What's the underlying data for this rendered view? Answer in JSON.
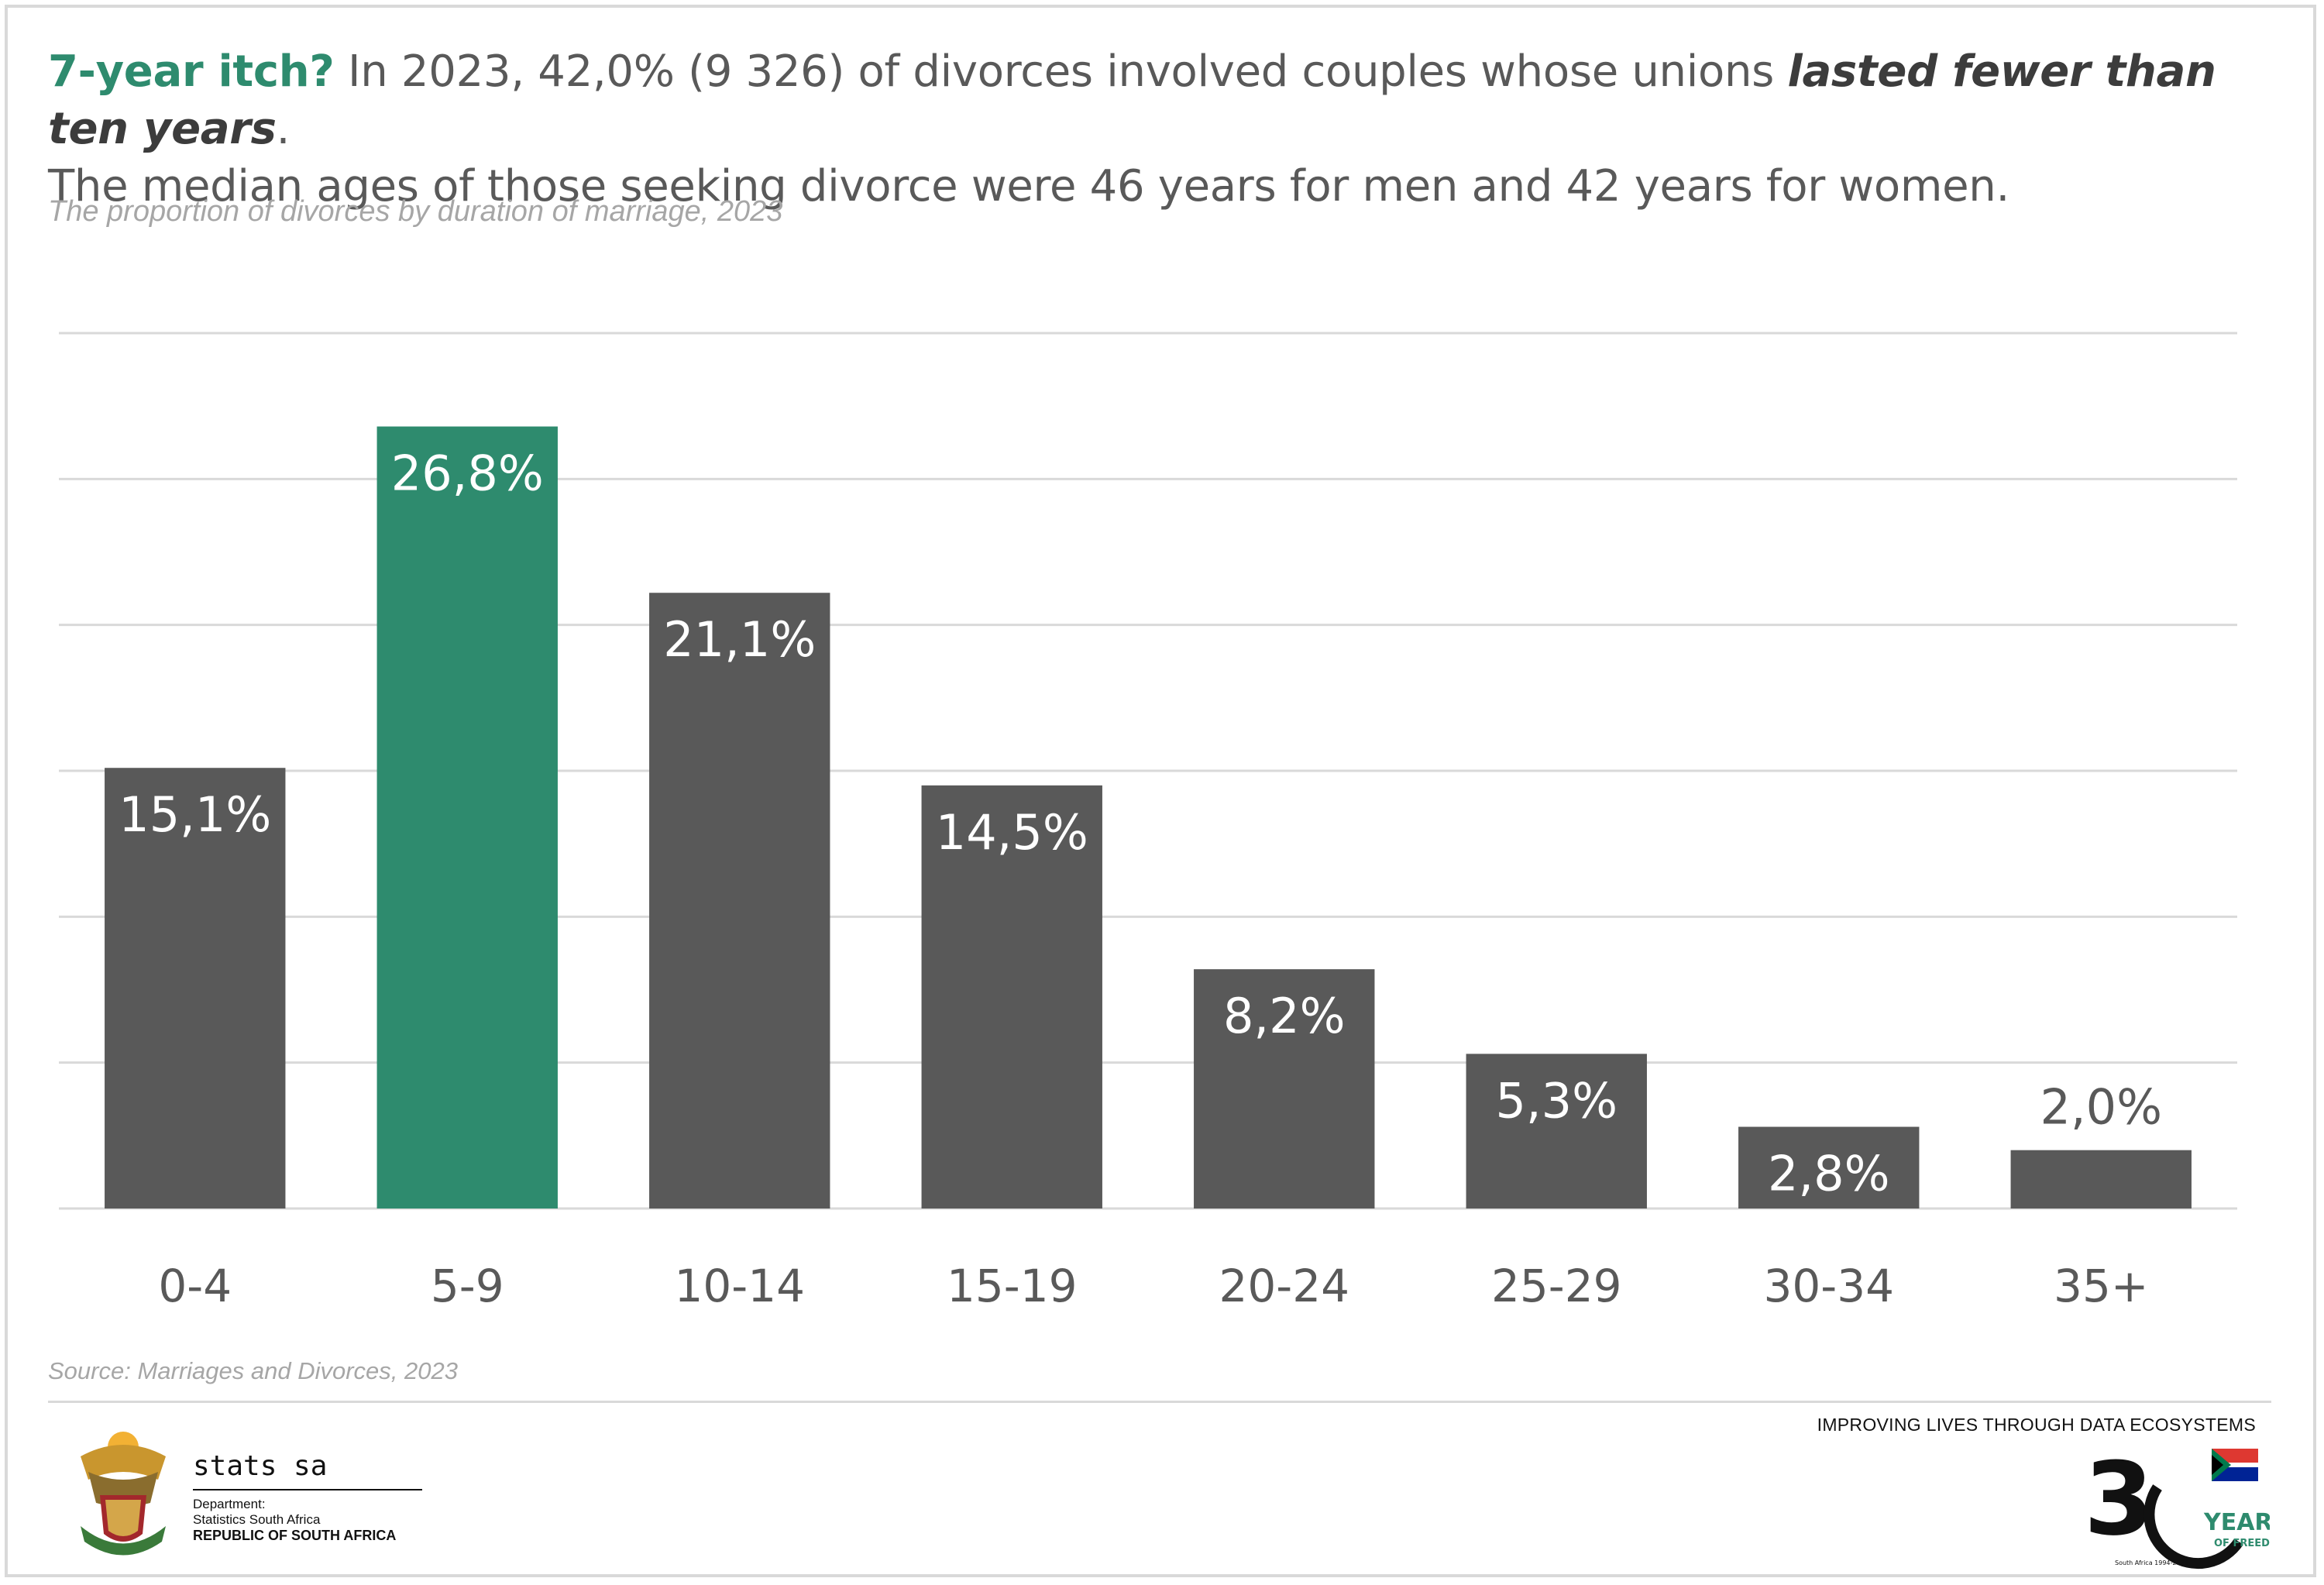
{
  "headline": {
    "lead": "7-year itch?",
    "part1": " In 2023, 42,0% (9 326) of divorces involved couples whose unions ",
    "emphasis": "lasted fewer than ten years",
    "part2": ".",
    "line2": "The median ages of those seeking divorce were 46 years for men and 42 years for women."
  },
  "footer": {
    "source": "Source:  Marriages and Divorces, 2023",
    "org_name": "stats sa",
    "dept_line1": "Department:",
    "dept_line2": "Statistics South Africa",
    "dept_line3": "REPUBLIC OF SOUTH AFRICA",
    "tagline": "IMPROVING LIVES THROUGH DATA ECOSYSTEMS",
    "anniv_years": "YEARS",
    "anniv_freedom": "OF FREEDOM",
    "anniv_arc": "South Africa 1994-2024"
  },
  "colors": {
    "highlight": "#2e8b6e",
    "bar": "#595959",
    "grid": "#d9d9d9",
    "label_inside": "#ffffff",
    "label_outside": "#595959",
    "tick": "#595959"
  },
  "chart_data": {
    "type": "bar",
    "title": "The proportion of divorces by duration of marriage, 2023",
    "categories": [
      "0-4",
      "5-9",
      "10-14",
      "15-19",
      "20-24",
      "25-29",
      "30-34",
      "35+"
    ],
    "values": [
      15.1,
      26.8,
      21.1,
      14.5,
      8.2,
      5.3,
      2.8,
      2.0
    ],
    "data_labels": [
      "15,1%",
      "26,8%",
      "21,1%",
      "14,5%",
      "8,2%",
      "5,3%",
      "2,8%",
      "2,0%"
    ],
    "highlight_category": "5-9",
    "unit": "%",
    "ylim": [
      0,
      30
    ],
    "grid": true,
    "legend": false
  }
}
